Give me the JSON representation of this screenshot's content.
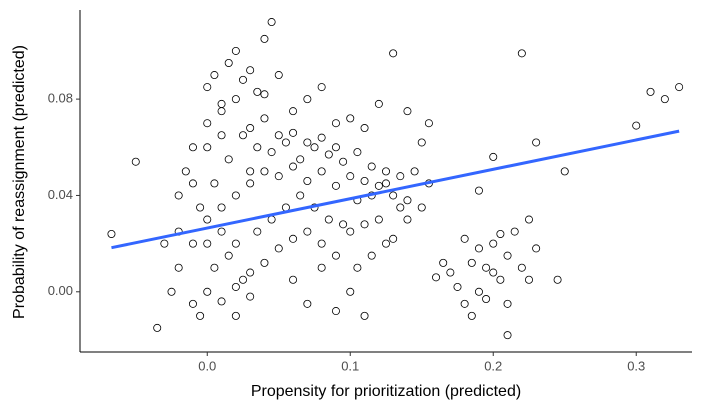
{
  "chart_data": {
    "type": "scatter",
    "xlabel": "Propensity for prioritization (predicted)",
    "ylabel": "Probability of reassignment (predicted)",
    "x": [
      0.0,
      0.01,
      0.02,
      0.03,
      0.04,
      0.05,
      0.06,
      0.07,
      0.08,
      0.09,
      0.1,
      0.11,
      0.12,
      0.13,
      0.14,
      -0.01,
      -0.02,
      0.005,
      0.015,
      0.025,
      0.035,
      0.045,
      0.055,
      0.065,
      0.075,
      0.085,
      0.095,
      0.105,
      0.115,
      0.125,
      0.0,
      0.01,
      0.02,
      0.03,
      0.04,
      0.05,
      0.06,
      0.07,
      0.08,
      0.09,
      0.0,
      0.01,
      0.02,
      0.03,
      0.04,
      0.05,
      0.06,
      0.07,
      0.08,
      0.09,
      0.1,
      0.11,
      0.12,
      0.13,
      0.14,
      0.15,
      0.105,
      0.115,
      0.125,
      0.135,
      -0.02,
      -0.015,
      -0.01,
      -0.005,
      0.005,
      0.015,
      0.025,
      0.035,
      0.045,
      0.055,
      0.065,
      0.075,
      0.085,
      0.095,
      0.105,
      0.115,
      0.125,
      0.135,
      0.145,
      0.155,
      0.0,
      0.005,
      0.01,
      0.015,
      0.02,
      0.025,
      0.03,
      0.035,
      0.04,
      0.045,
      -0.02,
      -0.025,
      -0.03,
      -0.035,
      -0.01,
      -0.005,
      0.0,
      0.01,
      0.02,
      0.03,
      0.17,
      0.175,
      0.18,
      0.185,
      0.19,
      0.195,
      0.2,
      0.205,
      0.21,
      0.215,
      0.18,
      0.185,
      0.19,
      0.195,
      0.2,
      0.205,
      0.21,
      0.22,
      0.225,
      0.23,
      0.31,
      0.33,
      0.3,
      0.22,
      0.25,
      0.23,
      0.19,
      -0.067,
      -0.05,
      0.13,
      0.16,
      0.165,
      0.15,
      0.14,
      0.155,
      0.245,
      0.225,
      0.21,
      0.2,
      0.32,
      0.06,
      0.07,
      0.08,
      0.09,
      0.1,
      0.11,
      0.12,
      0.05,
      0.04,
      0.03,
      0.06,
      0.07,
      0.08,
      0.09,
      0.1,
      0.11,
      0.02,
      0.01,
      0.0,
      -0.01
    ],
    "values": [
      0.03,
      0.035,
      0.04,
      0.045,
      0.05,
      0.048,
      0.052,
      0.046,
      0.05,
      0.044,
      0.048,
      0.046,
      0.044,
      0.04,
      0.038,
      0.02,
      0.025,
      0.01,
      0.015,
      0.005,
      0.06,
      0.058,
      0.062,
      0.055,
      0.06,
      0.057,
      0.054,
      0.058,
      0.052,
      0.05,
      0.07,
      0.075,
      0.08,
      0.068,
      0.072,
      0.065,
      0.066,
      0.062,
      0.064,
      0.06,
      0.0,
      -0.004,
      0.002,
      0.008,
      0.012,
      0.018,
      0.022,
      0.025,
      0.02,
      0.015,
      0.025,
      0.028,
      0.03,
      0.022,
      0.03,
      0.035,
      0.01,
      0.015,
      0.02,
      0.035,
      0.04,
      0.05,
      0.06,
      0.035,
      0.045,
      0.055,
      0.065,
      0.025,
      0.03,
      0.035,
      0.04,
      0.035,
      0.03,
      0.028,
      0.038,
      0.04,
      0.045,
      0.048,
      0.05,
      0.045,
      0.085,
      0.09,
      0.078,
      0.095,
      0.1,
      0.088,
      0.092,
      0.083,
      0.105,
      0.112,
      0.01,
      0.0,
      0.02,
      -0.015,
      -0.005,
      -0.01,
      0.06,
      0.065,
      0.02,
      -0.002,
      0.008,
      0.002,
      -0.005,
      0.012,
      0.018,
      0.01,
      0.02,
      0.005,
      0.015,
      0.025,
      0.022,
      -0.01,
      0.0,
      -0.003,
      0.008,
      0.024,
      -0.005,
      0.01,
      0.03,
      0.018,
      0.083,
      0.085,
      0.069,
      0.099,
      0.05,
      0.062,
      0.042,
      0.024,
      0.054,
      0.099,
      0.006,
      0.012,
      0.062,
      0.075,
      0.07,
      0.005,
      0.005,
      -0.018,
      0.056,
      0.08,
      0.075,
      0.08,
      0.085,
      0.07,
      0.072,
      0.068,
      0.078,
      0.09,
      0.082,
      0.05,
      0.005,
      -0.005,
      0.01,
      -0.008,
      0.0,
      -0.01,
      -0.01,
      0.025,
      0.02,
      0.045
    ],
    "marker_fill": "#ffffff",
    "marker_edge": "#000000",
    "fit_line": {
      "x": [
        -0.067,
        0.33
      ],
      "values": [
        0.0183,
        0.0667
      ],
      "color": "#3366ff"
    },
    "xlim": [
      -0.089,
      0.339
    ],
    "ylim": [
      -0.025,
      0.117
    ],
    "xticks": [
      {
        "value": 0,
        "label": "0.0"
      },
      0.1,
      0.2,
      0.3
    ],
    "yticks": [
      {
        "value": 0,
        "label": "0.00"
      },
      {
        "value": 0.04,
        "label": "0.04"
      },
      {
        "value": 0.08,
        "label": "0.08"
      }
    ],
    "grid": false
  }
}
